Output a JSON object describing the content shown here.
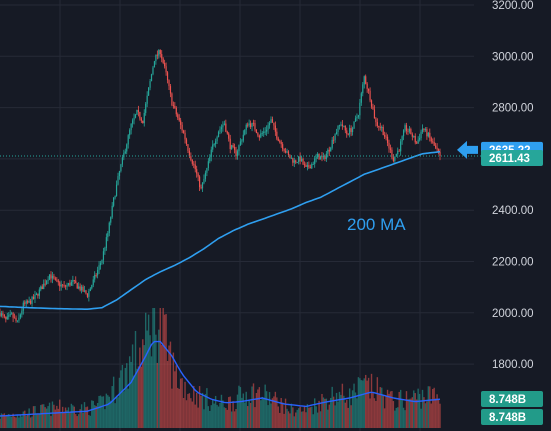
{
  "chart_data": {
    "type": "candlestick",
    "price_axis": {
      "range": [
        1640,
        3240
      ],
      "ticks": [
        "3200.00",
        "3000.00",
        "2800.00",
        "2600.00",
        "2400.00",
        "2200.00",
        "2000.00",
        "1800.00"
      ],
      "tick_values": [
        3200,
        3000,
        2800,
        2600,
        2400,
        2200,
        2000,
        1800
      ]
    },
    "last_price_label": "2611.43",
    "last_price_value": 2611.43,
    "ma_price_label": "2635.22",
    "ma_price_value": 2635.22,
    "volume_labels": [
      "8.748B",
      "8.748B"
    ],
    "annotation": "200 MA",
    "price_anchors": [
      {
        "t": 0,
        "p": 2000
      },
      {
        "t": 4,
        "p": 1970
      },
      {
        "t": 8,
        "p": 1990
      },
      {
        "t": 12,
        "p": 1960
      },
      {
        "t": 16,
        "p": 2030
      },
      {
        "t": 20,
        "p": 2040
      },
      {
        "t": 24,
        "p": 2060
      },
      {
        "t": 30,
        "p": 2110
      },
      {
        "t": 34,
        "p": 2150
      },
      {
        "t": 38,
        "p": 2120
      },
      {
        "t": 44,
        "p": 2100
      },
      {
        "t": 50,
        "p": 2120
      },
      {
        "t": 56,
        "p": 2090
      },
      {
        "t": 60,
        "p": 2070
      },
      {
        "t": 66,
        "p": 2150
      },
      {
        "t": 70,
        "p": 2210
      },
      {
        "t": 74,
        "p": 2310
      },
      {
        "t": 78,
        "p": 2440
      },
      {
        "t": 82,
        "p": 2550
      },
      {
        "t": 86,
        "p": 2640
      },
      {
        "t": 90,
        "p": 2730
      },
      {
        "t": 94,
        "p": 2780
      },
      {
        "t": 98,
        "p": 2750
      },
      {
        "t": 102,
        "p": 2870
      },
      {
        "t": 106,
        "p": 2990
      },
      {
        "t": 110,
        "p": 3020
      },
      {
        "t": 114,
        "p": 2930
      },
      {
        "t": 118,
        "p": 2820
      },
      {
        "t": 122,
        "p": 2760
      },
      {
        "t": 126,
        "p": 2700
      },
      {
        "t": 130,
        "p": 2620
      },
      {
        "t": 134,
        "p": 2560
      },
      {
        "t": 138,
        "p": 2480
      },
      {
        "t": 142,
        "p": 2560
      },
      {
        "t": 146,
        "p": 2650
      },
      {
        "t": 150,
        "p": 2710
      },
      {
        "t": 154,
        "p": 2740
      },
      {
        "t": 158,
        "p": 2650
      },
      {
        "t": 162,
        "p": 2620
      },
      {
        "t": 166,
        "p": 2680
      },
      {
        "t": 170,
        "p": 2740
      },
      {
        "t": 174,
        "p": 2730
      },
      {
        "t": 178,
        "p": 2690
      },
      {
        "t": 182,
        "p": 2710
      },
      {
        "t": 186,
        "p": 2750
      },
      {
        "t": 190,
        "p": 2690
      },
      {
        "t": 194,
        "p": 2650
      },
      {
        "t": 198,
        "p": 2610
      },
      {
        "t": 202,
        "p": 2590
      },
      {
        "t": 206,
        "p": 2600
      },
      {
        "t": 210,
        "p": 2560
      },
      {
        "t": 214,
        "p": 2580
      },
      {
        "t": 218,
        "p": 2610
      },
      {
        "t": 222,
        "p": 2600
      },
      {
        "t": 226,
        "p": 2640
      },
      {
        "t": 230,
        "p": 2700
      },
      {
        "t": 234,
        "p": 2740
      },
      {
        "t": 238,
        "p": 2700
      },
      {
        "t": 242,
        "p": 2720
      },
      {
        "t": 246,
        "p": 2780
      },
      {
        "t": 250,
        "p": 2920
      },
      {
        "t": 254,
        "p": 2840
      },
      {
        "t": 258,
        "p": 2740
      },
      {
        "t": 262,
        "p": 2720
      },
      {
        "t": 266,
        "p": 2660
      },
      {
        "t": 270,
        "p": 2600
      },
      {
        "t": 274,
        "p": 2640
      },
      {
        "t": 278,
        "p": 2720
      },
      {
        "t": 282,
        "p": 2700
      },
      {
        "t": 286,
        "p": 2660
      },
      {
        "t": 290,
        "p": 2720
      },
      {
        "t": 294,
        "p": 2690
      },
      {
        "t": 298,
        "p": 2650
      },
      {
        "t": 300,
        "p": 2630
      },
      {
        "t": 302,
        "p": 2611
      }
    ],
    "ma_anchors": [
      {
        "t": 0,
        "p": 2025
      },
      {
        "t": 20,
        "p": 2020
      },
      {
        "t": 40,
        "p": 2016
      },
      {
        "t": 60,
        "p": 2014
      },
      {
        "t": 70,
        "p": 2020
      },
      {
        "t": 80,
        "p": 2050
      },
      {
        "t": 90,
        "p": 2090
      },
      {
        "t": 100,
        "p": 2130
      },
      {
        "t": 110,
        "p": 2160
      },
      {
        "t": 120,
        "p": 2185
      },
      {
        "t": 130,
        "p": 2215
      },
      {
        "t": 140,
        "p": 2250
      },
      {
        "t": 150,
        "p": 2290
      },
      {
        "t": 160,
        "p": 2320
      },
      {
        "t": 170,
        "p": 2345
      },
      {
        "t": 180,
        "p": 2365
      },
      {
        "t": 190,
        "p": 2385
      },
      {
        "t": 200,
        "p": 2405
      },
      {
        "t": 210,
        "p": 2430
      },
      {
        "t": 220,
        "p": 2450
      },
      {
        "t": 230,
        "p": 2480
      },
      {
        "t": 240,
        "p": 2510
      },
      {
        "t": 250,
        "p": 2540
      },
      {
        "t": 260,
        "p": 2560
      },
      {
        "t": 270,
        "p": 2580
      },
      {
        "t": 280,
        "p": 2600
      },
      {
        "t": 290,
        "p": 2620
      },
      {
        "t": 302,
        "p": 2628
      }
    ],
    "volume_anchors": [
      {
        "t": 0,
        "v": 0.1
      },
      {
        "t": 20,
        "v": 0.13
      },
      {
        "t": 40,
        "v": 0.17
      },
      {
        "t": 60,
        "v": 0.16
      },
      {
        "t": 70,
        "v": 0.2
      },
      {
        "t": 80,
        "v": 0.35
      },
      {
        "t": 90,
        "v": 0.55
      },
      {
        "t": 100,
        "v": 0.7
      },
      {
        "t": 105,
        "v": 0.95
      },
      {
        "t": 110,
        "v": 0.85
      },
      {
        "t": 115,
        "v": 0.65
      },
      {
        "t": 120,
        "v": 0.45
      },
      {
        "t": 130,
        "v": 0.3
      },
      {
        "t": 140,
        "v": 0.25
      },
      {
        "t": 150,
        "v": 0.2
      },
      {
        "t": 160,
        "v": 0.22
      },
      {
        "t": 170,
        "v": 0.3
      },
      {
        "t": 180,
        "v": 0.28
      },
      {
        "t": 190,
        "v": 0.22
      },
      {
        "t": 200,
        "v": 0.15
      },
      {
        "t": 210,
        "v": 0.15
      },
      {
        "t": 220,
        "v": 0.22
      },
      {
        "t": 230,
        "v": 0.28
      },
      {
        "t": 240,
        "v": 0.26
      },
      {
        "t": 250,
        "v": 0.35
      },
      {
        "t": 260,
        "v": 0.3
      },
      {
        "t": 270,
        "v": 0.22
      },
      {
        "t": 280,
        "v": 0.24
      },
      {
        "t": 290,
        "v": 0.27
      },
      {
        "t": 302,
        "v": 0.26
      }
    ],
    "volume_ma_anchors": [
      {
        "t": 0,
        "v": 0.1
      },
      {
        "t": 30,
        "v": 0.12
      },
      {
        "t": 60,
        "v": 0.14
      },
      {
        "t": 75,
        "v": 0.2
      },
      {
        "t": 90,
        "v": 0.38
      },
      {
        "t": 100,
        "v": 0.6
      },
      {
        "t": 105,
        "v": 0.72
      },
      {
        "t": 110,
        "v": 0.72
      },
      {
        "t": 118,
        "v": 0.6
      },
      {
        "t": 125,
        "v": 0.45
      },
      {
        "t": 135,
        "v": 0.3
      },
      {
        "t": 145,
        "v": 0.24
      },
      {
        "t": 155,
        "v": 0.21
      },
      {
        "t": 165,
        "v": 0.22
      },
      {
        "t": 180,
        "v": 0.25
      },
      {
        "t": 195,
        "v": 0.2
      },
      {
        "t": 210,
        "v": 0.18
      },
      {
        "t": 225,
        "v": 0.22
      },
      {
        "t": 240,
        "v": 0.25
      },
      {
        "t": 255,
        "v": 0.3
      },
      {
        "t": 270,
        "v": 0.25
      },
      {
        "t": 285,
        "v": 0.22
      },
      {
        "t": 302,
        "v": 0.24
      }
    ]
  },
  "colors": {
    "background": "#161a25",
    "grid": "#262a37",
    "up": "#26a69a",
    "down": "#ef5350",
    "ma": "#2f9ff0",
    "axis_text": "#d1d4dc",
    "price_line": "#26a69a",
    "badge_green": "#26a69a",
    "badge_blue": "#2f9ff0",
    "badge_vol": "#229b89"
  }
}
